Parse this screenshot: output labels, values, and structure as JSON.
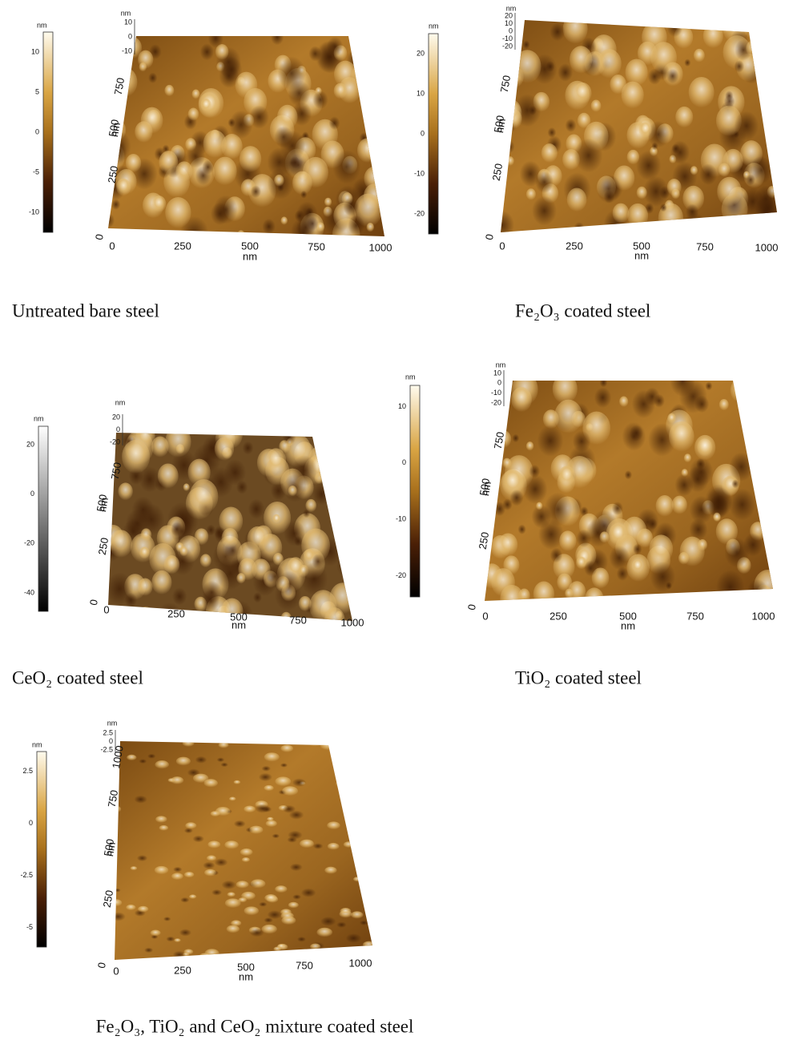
{
  "panels": [
    {
      "caption": "Untreated bare steel",
      "colorbar": {
        "unit": "nm",
        "ticks": [
          "10",
          "5",
          "0",
          "-5",
          "-10"
        ]
      },
      "z_axis": {
        "unit": "nm",
        "ticks": [
          "10",
          "0",
          "-10"
        ]
      },
      "y_axis": {
        "label": "nm",
        "ticks": [
          "250",
          "500",
          "750"
        ]
      },
      "x_axis": {
        "label": "nm",
        "ticks": [
          "0",
          "250",
          "500",
          "750",
          "1000"
        ]
      },
      "origin": "0"
    },
    {
      "caption": "Fe₂O₃ coated steel",
      "colorbar": {
        "unit": "nm",
        "ticks": [
          "20",
          "10",
          "0",
          "-10",
          "-20"
        ]
      },
      "z_axis": {
        "unit": "nm",
        "ticks": [
          "20",
          "10",
          "0",
          "-10",
          "-20"
        ]
      },
      "y_axis": {
        "label": "nm",
        "ticks": [
          "250",
          "500",
          "750"
        ]
      },
      "x_axis": {
        "label": "nm",
        "ticks": [
          "0",
          "250",
          "500",
          "750",
          "1000"
        ]
      },
      "origin": "0"
    },
    {
      "caption": "CeO₂ coated steel",
      "colorbar": {
        "unit": "nm",
        "ticks": [
          "20",
          "0",
          "-20",
          "-40"
        ]
      },
      "z_axis": {
        "unit": "nm",
        "ticks": [
          "20",
          "0",
          "-20"
        ]
      },
      "y_axis": {
        "label": "nm",
        "ticks": [
          "250",
          "500",
          "750"
        ]
      },
      "x_axis": {
        "label": "nm",
        "ticks": [
          "0",
          "250",
          "500",
          "750",
          "1000"
        ]
      },
      "origin": "0"
    },
    {
      "caption": "TiO₂ coated steel",
      "colorbar": {
        "unit": "nm",
        "ticks": [
          "10",
          "0",
          "-10",
          "-20"
        ]
      },
      "z_axis": {
        "unit": "nm",
        "ticks": [
          "10",
          "0",
          "-10",
          "-20"
        ]
      },
      "y_axis": {
        "label": "nm",
        "ticks": [
          "250",
          "500",
          "750"
        ]
      },
      "x_axis": {
        "label": "nm",
        "ticks": [
          "0",
          "250",
          "500",
          "750",
          "1000"
        ]
      },
      "origin": "0"
    },
    {
      "caption": "Fe₂O₃, TiO₂ and CeO₂ mixture coated steel",
      "colorbar": {
        "unit": "nm",
        "ticks": [
          "2.5",
          "0",
          "-2.5",
          "-5"
        ]
      },
      "z_axis": {
        "unit": "nm",
        "ticks": [
          "2.5",
          "0",
          "-2.5"
        ]
      },
      "y_axis": {
        "label": "nm",
        "ticks": [
          "250",
          "500",
          "750",
          "1000"
        ]
      },
      "x_axis": {
        "label": "nm",
        "ticks": [
          "0",
          "250",
          "500",
          "750",
          "1000"
        ]
      },
      "origin": "0"
    }
  ]
}
